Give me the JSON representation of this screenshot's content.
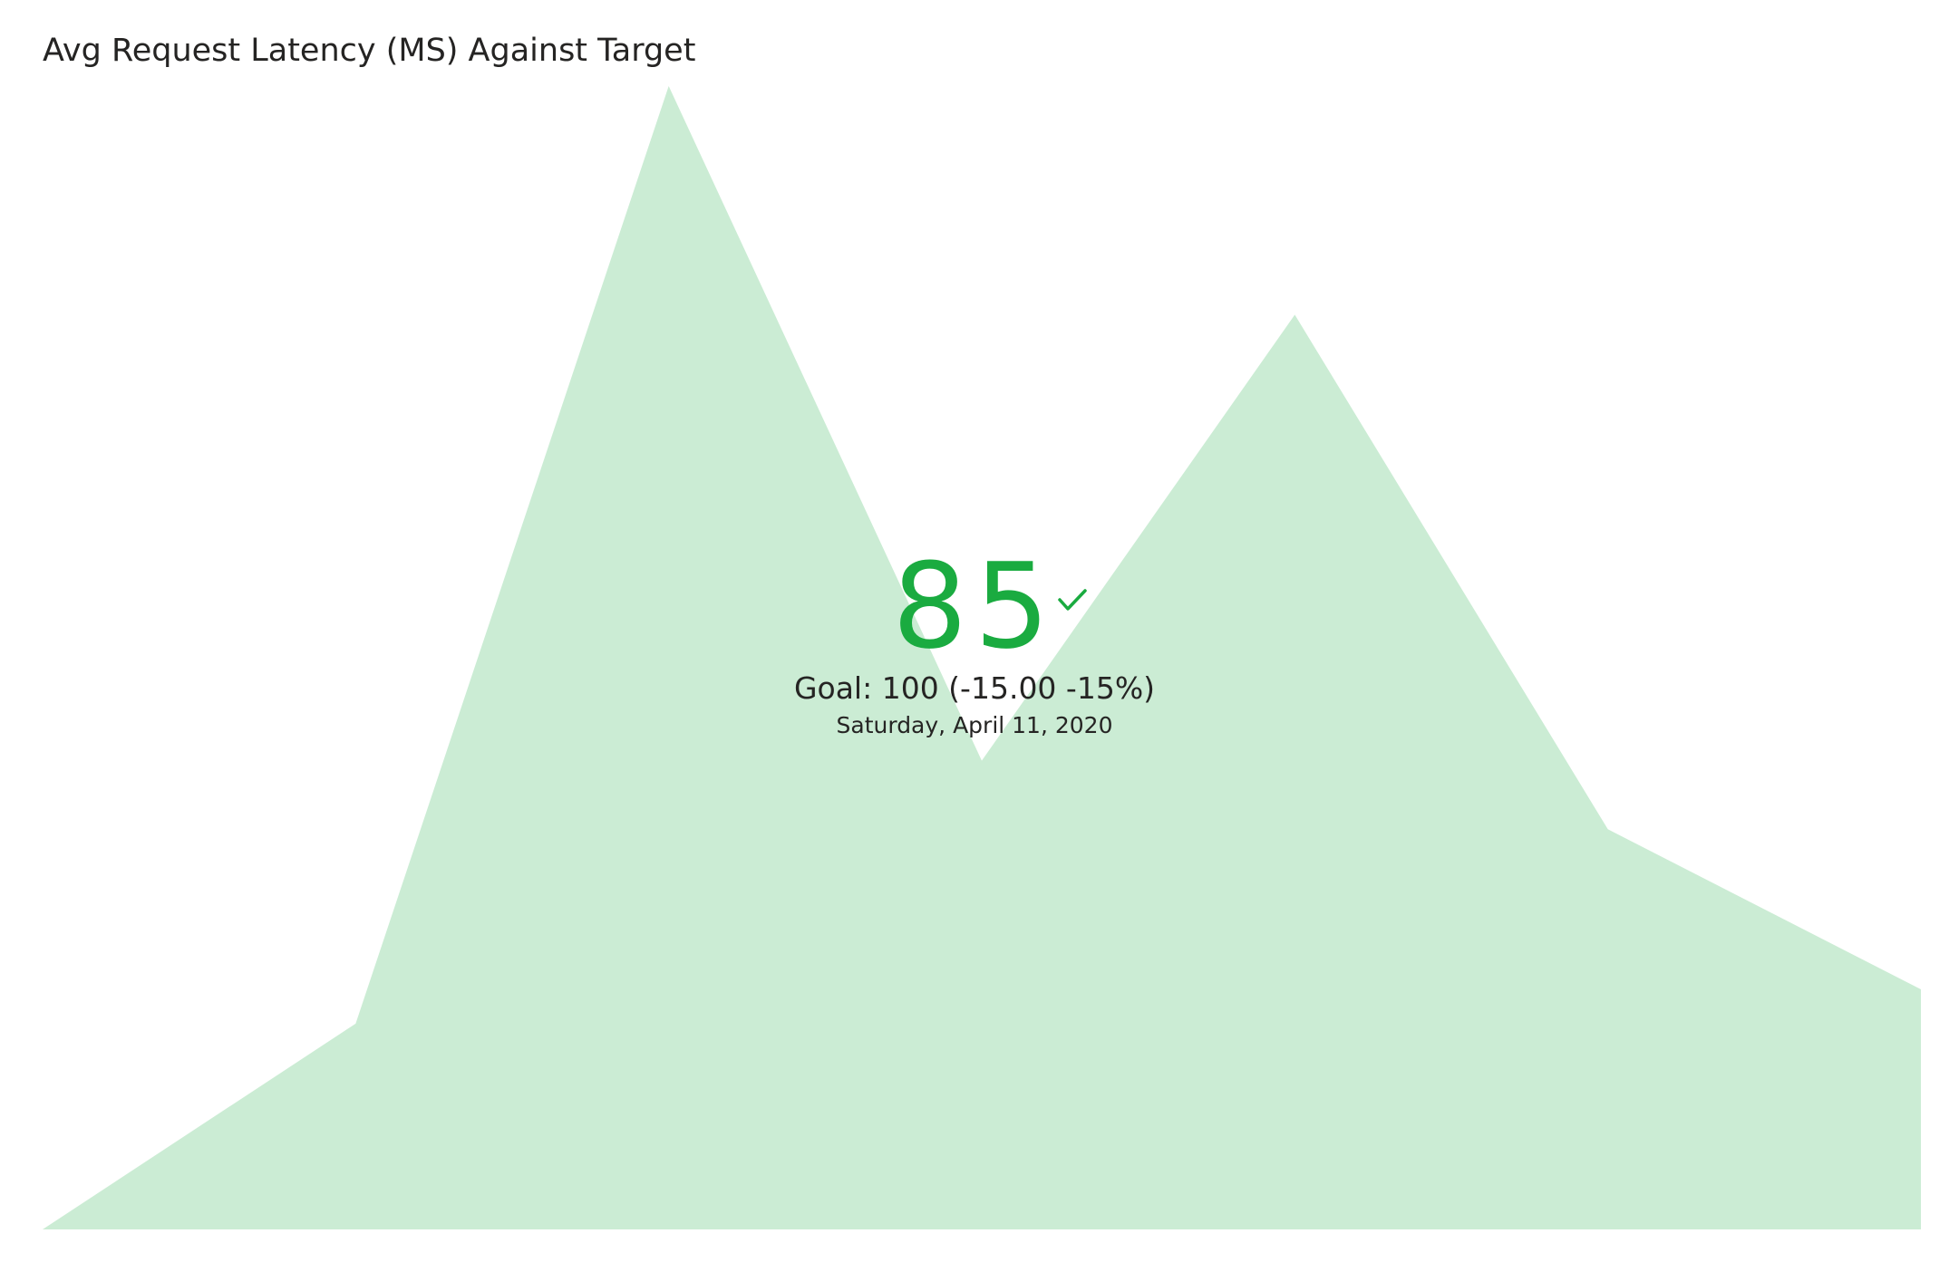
{
  "visual": {
    "title": "Avg Request Latency (MS) Against Target"
  },
  "kpi": {
    "value": "85",
    "goal_text": "Goal: 100 (-15.00 -15%)",
    "date_text": "Saturday, April 11, 2020",
    "status_icon": "check-icon",
    "status_color": "#1aab40"
  },
  "chart_data": {
    "type": "area",
    "title": "Avg Request Latency (MS) Against Target",
    "xlabel": "",
    "ylabel": "",
    "grid": false,
    "axes_visible": false,
    "fill_color": "#cbecd4",
    "x": [
      1,
      2,
      3,
      4,
      5,
      6,
      7
    ],
    "values": [
      0,
      18,
      100,
      41,
      80,
      35,
      21
    ],
    "ylim": [
      0,
      100
    ]
  }
}
